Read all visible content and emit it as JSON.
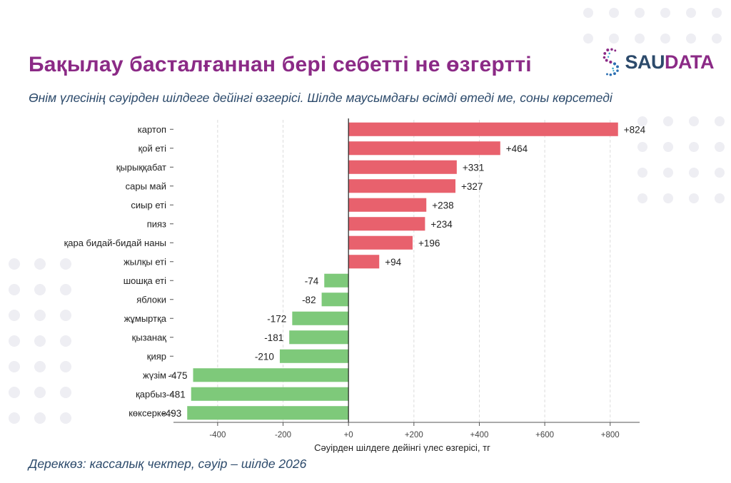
{
  "header": {
    "title": "Бақылау басталғаннан бері себетті не өзгертті",
    "subtitle": "Өнім үлесінің сәуірден шілдеге дейінгі өзгерісі. Шілде маусымдағы өсімді өтеді ме, соны көрсетеді",
    "source": "Дереккөз: кассалық чектер, сәуір – шілде 2026"
  },
  "logo": {
    "text_a": "SAU",
    "text_b": "DATA"
  },
  "colors": {
    "positive": "#e8616d",
    "negative": "#7ec97a",
    "title": "#8b2a86",
    "text": "#2c4a6b"
  },
  "chart_data": {
    "type": "bar",
    "orientation": "horizontal",
    "categories": [
      "картоп",
      "қой еті",
      "қырыққабат",
      "сары май",
      "сиыр еті",
      "пияз",
      "қара бидай-бидай наны",
      "жылқы еті",
      "шошқа еті",
      "яблоки",
      "жұмыртқа",
      "қызанақ",
      "қияр",
      "жүзім",
      "қарбыз",
      "көксерке"
    ],
    "values": [
      824,
      464,
      331,
      327,
      238,
      234,
      196,
      94,
      -74,
      -82,
      -172,
      -181,
      -210,
      -475,
      -481,
      -493
    ],
    "value_labels": [
      "+824",
      "+464",
      "+331",
      "+327",
      "+238",
      "+234",
      "+196",
      "+94",
      "-74",
      "-82",
      "-172",
      "-181",
      "-210",
      "-475",
      "-481",
      "-493"
    ],
    "xlabel": "Сәуірден шілдеге дейінгі үлес өзгерісі, тг",
    "ylabel": "",
    "xlim": [
      -535,
      890
    ],
    "xticks": [
      -400,
      -200,
      0,
      200,
      400,
      600,
      800
    ],
    "xtick_labels": [
      "-400",
      "-200",
      "+0",
      "+200",
      "+400",
      "+600",
      "+800"
    ],
    "grid": "vertical"
  }
}
